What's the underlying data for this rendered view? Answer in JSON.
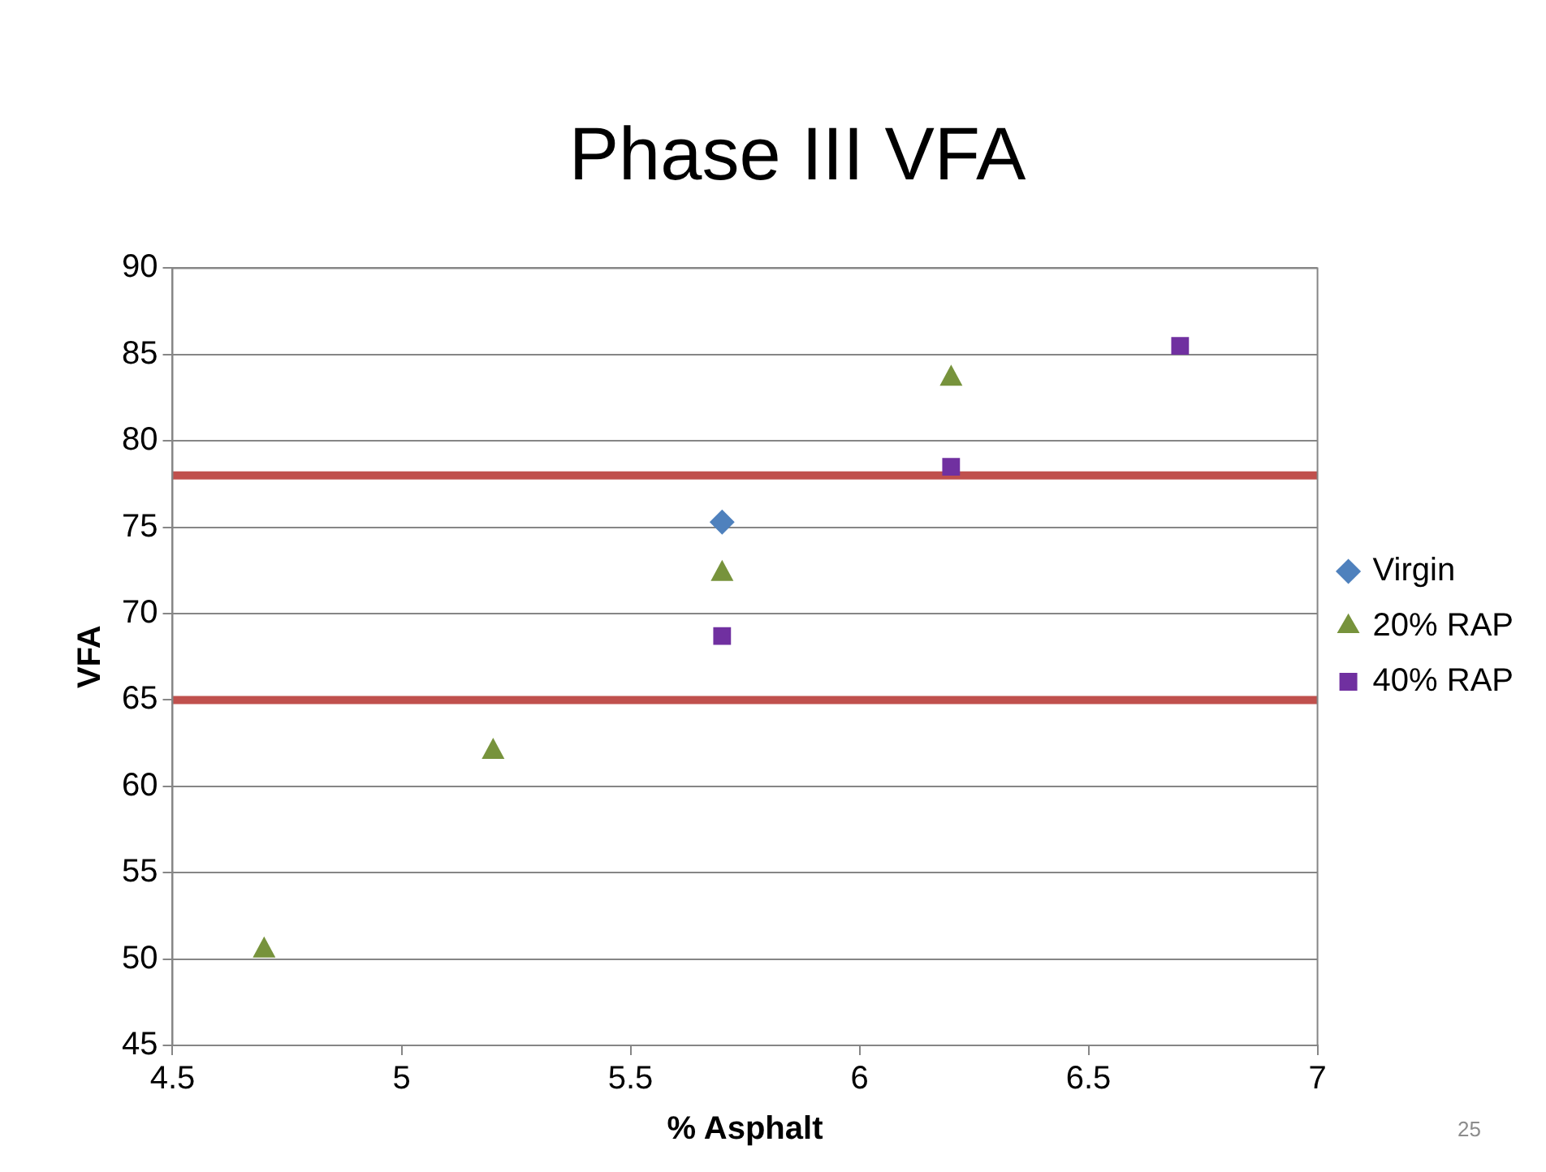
{
  "chart_data": {
    "type": "scatter",
    "title": "Phase III VFA",
    "xlabel": "% Asphalt",
    "ylabel": "VFA",
    "series": [
      {
        "name": "Virgin",
        "color": "#4f81bd",
        "marker": "diamond",
        "x": [
          5.7
        ],
        "values": [
          75.3
        ]
      },
      {
        "name": "20% RAP",
        "color": "#77933c",
        "marker": "triangle",
        "x": [
          4.7,
          5.2,
          5.7,
          6.2
        ],
        "values": [
          50.7,
          62.2,
          72.5,
          83.8
        ]
      },
      {
        "name": "40% RAP",
        "color": "#7030a0",
        "marker": "square",
        "x": [
          5.7,
          6.2,
          6.7
        ],
        "values": [
          68.7,
          78.5,
          85.5
        ]
      }
    ],
    "xlim": [
      4.5,
      7
    ],
    "xticks": [
      4.5,
      5,
      5.5,
      6,
      6.5,
      7
    ],
    "ylim": [
      45,
      90
    ],
    "yticks": [
      45,
      50,
      55,
      60,
      65,
      70,
      75,
      80,
      85,
      90
    ],
    "ref_lines": [
      {
        "axis": "y",
        "value": 78,
        "color": "#c0504d"
      },
      {
        "axis": "y",
        "value": 65,
        "color": "#c0504d"
      }
    ],
    "grid": "y",
    "legend": "right",
    "annotations": [
      "25"
    ]
  }
}
